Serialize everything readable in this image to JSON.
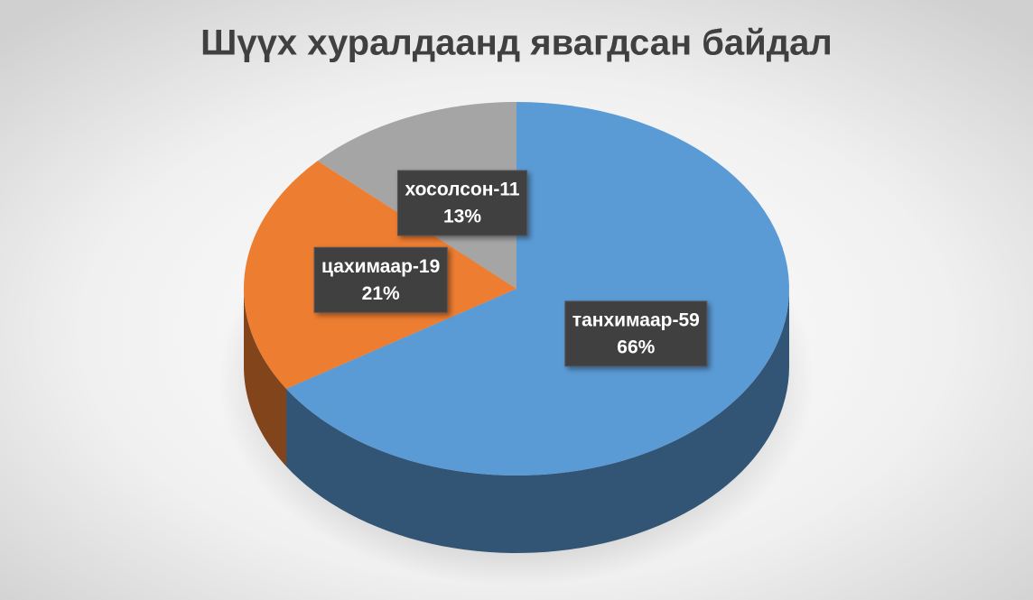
{
  "chart_data": {
    "type": "pie3d",
    "title": "Шүүх хуралдаанд явагдсан байдал",
    "categories": [
      "танхимаар-59",
      "цахимаар-19",
      "хосолсон-11"
    ],
    "values": [
      66,
      21,
      13
    ],
    "value_labels": [
      "66%",
      "21%",
      "13%"
    ],
    "colors": [
      "#5b9bd5",
      "#ed7d31",
      "#a5a5a5"
    ]
  }
}
